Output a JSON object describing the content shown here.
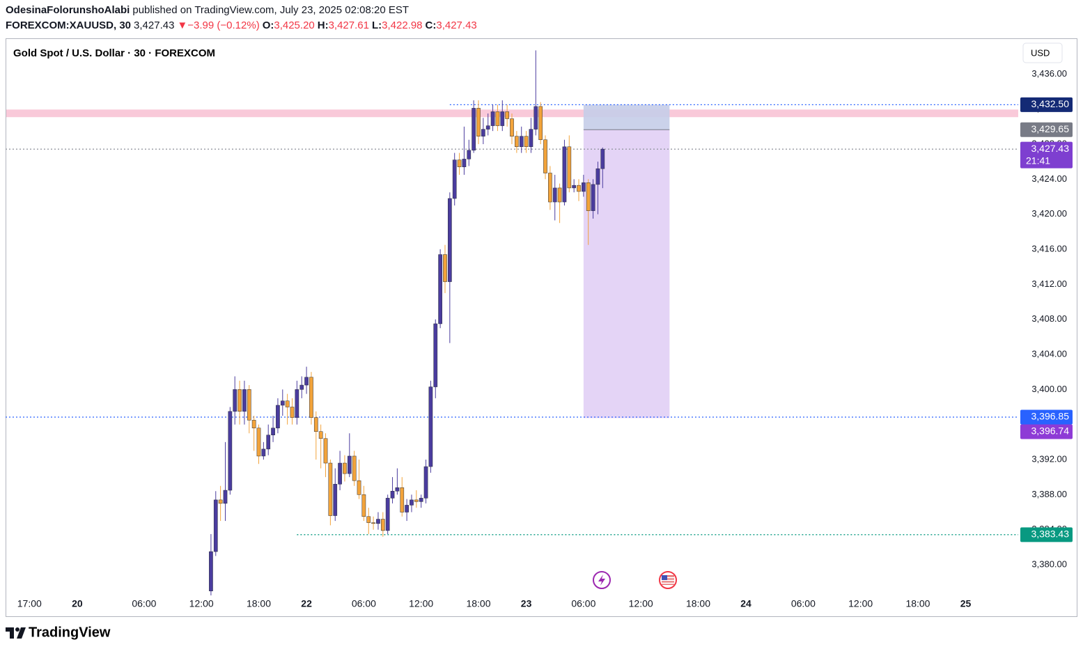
{
  "header": {
    "author": "OdesinaFolorunshoAlabi",
    "published": "published on TradingView.com, July 23, 2025 02:08:20 EST",
    "symbol": "FOREXCOM:XAUUSD, 30",
    "last": "3,427.43",
    "arrow": "▼",
    "change": "−3.99 (−0.12%)",
    "ohlc": [
      {
        "label": "O:",
        "value": "3,425.20"
      },
      {
        "label": "H:",
        "value": "3,427.61"
      },
      {
        "label": "L:",
        "value": "3,422.98"
      },
      {
        "label": "C:",
        "value": "3,427.43"
      }
    ]
  },
  "footer": {
    "brand": "TradingView"
  },
  "chart_data": {
    "type": "candlestick",
    "title": "Gold Spot / U.S. Dollar · 30 · FOREXCOM",
    "currency": "USD",
    "up_color": "#4a3c9e",
    "down_color": "#f2a33a",
    "xlim": [
      -41,
      171
    ],
    "ylim": [
      3376.9,
      3440
    ],
    "xticks": [
      {
        "value": -36,
        "label": "17:00"
      },
      {
        "value": -26,
        "label": "20"
      },
      {
        "value": -12,
        "label": "06:00"
      },
      {
        "value": 0,
        "label": "12:00"
      },
      {
        "value": 12,
        "label": "18:00"
      },
      {
        "value": 22,
        "label": "22"
      },
      {
        "value": 34,
        "label": "06:00"
      },
      {
        "value": 46,
        "label": "12:00"
      },
      {
        "value": 58,
        "label": "18:00"
      },
      {
        "value": 68,
        "label": "23"
      },
      {
        "value": 80,
        "label": "06:00"
      },
      {
        "value": 92,
        "label": "12:00"
      },
      {
        "value": 104,
        "label": "18:00"
      },
      {
        "value": 114,
        "label": "24"
      },
      {
        "value": 126,
        "label": "06:00"
      },
      {
        "value": 138,
        "label": "12:00"
      },
      {
        "value": 150,
        "label": "18:00"
      },
      {
        "value": 160,
        "label": "25"
      }
    ],
    "yticks": [
      {
        "value": 3380,
        "label": "3,380.00"
      },
      {
        "value": 3384,
        "label": "3,384.00"
      },
      {
        "value": 3388,
        "label": "3,388.00"
      },
      {
        "value": 3392,
        "label": "3,392.00"
      },
      {
        "value": 3396,
        "label": "3,396.00"
      },
      {
        "value": 3400,
        "label": "3,400.00"
      },
      {
        "value": 3404,
        "label": "3,404.00"
      },
      {
        "value": 3408,
        "label": "3,408.00"
      },
      {
        "value": 3412,
        "label": "3,412.00"
      },
      {
        "value": 3416,
        "label": "3,416.00"
      },
      {
        "value": 3420,
        "label": "3,420.00"
      },
      {
        "value": 3424,
        "label": "3,424.00"
      },
      {
        "value": 3428,
        "label": "3,428.00"
      },
      {
        "value": 3432,
        "label": "3,432.00"
      },
      {
        "value": 3436,
        "label": "3,436.00"
      }
    ],
    "x": [
      2,
      3,
      4,
      5,
      6,
      7,
      8,
      9,
      10,
      11,
      12,
      13,
      14,
      15,
      16,
      17,
      18,
      19,
      20,
      21,
      22,
      23,
      24,
      25,
      26,
      27,
      28,
      29,
      30,
      31,
      32,
      33,
      34,
      35,
      36,
      37,
      38,
      39,
      40,
      41,
      42,
      43,
      44,
      45,
      46,
      47,
      48,
      49,
      50,
      51,
      52,
      53,
      54,
      55,
      56,
      57,
      58,
      59,
      60,
      61,
      62,
      63,
      64,
      65,
      66,
      67,
      68,
      69,
      70,
      71,
      72,
      73,
      74,
      75,
      76,
      77,
      78,
      79,
      80,
      81,
      82,
      83,
      84
    ],
    "open": [
      3377.0,
      3381.5,
      3387.4,
      3387.0,
      3388.5,
      3397.5,
      3400.0,
      3397.5,
      3400.0,
      3396.5,
      3395.6,
      3392.4,
      3393.2,
      3394.8,
      3395.6,
      3398.2,
      3398.7,
      3398.0,
      3396.8,
      3400.0,
      3400.5,
      3401.4,
      3396.8,
      3395.2,
      3394.4,
      3391.6,
      3385.6,
      3389.2,
      3391.6,
      3390.4,
      3392.4,
      3389.6,
      3388.0,
      3385.5,
      3384.8,
      3384.7,
      3385.2,
      3383.9,
      3387.6,
      3388.4,
      3388.8,
      3386.0,
      3386.8,
      3387.4,
      3387.2,
      3387.6,
      3391.2,
      3400.3,
      3407.5,
      3415.4,
      3412.3,
      3421.8,
      3426.2,
      3425.4,
      3426.3,
      3427.3,
      3432.1,
      3428.9,
      3429.7,
      3430.1,
      3431.7,
      3430.1,
      3431.7,
      3430.9,
      3428.9,
      3427.7,
      3428.9,
      3427.7,
      3429.7,
      3432.3,
      3428.5,
      3424.7,
      3421.4,
      3423.0,
      3421.4,
      3427.7,
      3423.0,
      3423.3,
      3422.6,
      3423.6,
      3420.4,
      3423.4,
      3425.2
    ],
    "high": [
      3383.5,
      3388.4,
      3389.0,
      3394.0,
      3398.0,
      3401.5,
      3401.0,
      3401.0,
      3400.5,
      3397.0,
      3396.0,
      3394.0,
      3396.0,
      3397.0,
      3399.0,
      3400.0,
      3399.5,
      3399.0,
      3401.0,
      3401.5,
      3402.6,
      3402.0,
      3397.5,
      3396.0,
      3395.0,
      3392.0,
      3391.0,
      3393.0,
      3392.5,
      3395.0,
      3393.0,
      3392.0,
      3389.0,
      3386.5,
      3385.5,
      3386.0,
      3386.0,
      3388.0,
      3390.0,
      3391.0,
      3390.0,
      3387.5,
      3388.0,
      3388.5,
      3388.0,
      3392.0,
      3401.0,
      3408.0,
      3416.0,
      3416.5,
      3422.5,
      3427.0,
      3427.0,
      3430.0,
      3428.5,
      3433.0,
      3433.0,
      3431.0,
      3431.5,
      3432.5,
      3432.5,
      3433.0,
      3432.5,
      3431.5,
      3429.5,
      3430.0,
      3429.5,
      3431.0,
      3438.7,
      3432.8,
      3429.0,
      3425.5,
      3424.5,
      3423.5,
      3428.5,
      3429.0,
      3424.0,
      3424.0,
      3424.5,
      3424.0,
      3424.0,
      3426.0,
      3427.61
    ],
    "low": [
      3376.5,
      3381.0,
      3385.0,
      3385.0,
      3388.0,
      3396.0,
      3396.0,
      3396.0,
      3395.0,
      3393.0,
      3391.5,
      3392.0,
      3392.5,
      3394.0,
      3395.0,
      3397.0,
      3396.0,
      3396.0,
      3396.0,
      3399.0,
      3399.5,
      3396.0,
      3392.0,
      3391.0,
      3390.0,
      3384.5,
      3385.0,
      3388.5,
      3389.5,
      3390.0,
      3389.0,
      3387.5,
      3385.0,
      3383.5,
      3384.0,
      3384.0,
      3383.2,
      3383.5,
      3387.0,
      3388.0,
      3385.5,
      3385.0,
      3386.0,
      3386.5,
      3386.5,
      3387.0,
      3390.5,
      3399.0,
      3407.0,
      3411.0,
      3405.3,
      3421.0,
      3424.5,
      3424.5,
      3425.5,
      3427.0,
      3428.0,
      3428.0,
      3429.0,
      3429.5,
      3429.5,
      3429.5,
      3430.0,
      3428.0,
      3427.0,
      3427.0,
      3427.0,
      3427.0,
      3429.0,
      3428.0,
      3424.0,
      3420.5,
      3419.3,
      3419.0,
      3421.0,
      3422.5,
      3422.5,
      3421.5,
      3422.0,
      3416.5,
      3419.5,
      3420.0,
      3422.98
    ],
    "close": [
      3381.5,
      3387.4,
      3387.0,
      3388.5,
      3397.5,
      3400.0,
      3397.5,
      3400.0,
      3396.5,
      3395.6,
      3392.4,
      3393.2,
      3394.8,
      3395.6,
      3398.2,
      3398.7,
      3398.0,
      3396.8,
      3400.0,
      3400.5,
      3401.4,
      3396.8,
      3395.2,
      3394.4,
      3391.6,
      3385.6,
      3389.2,
      3391.6,
      3390.4,
      3392.4,
      3389.6,
      3388.0,
      3385.5,
      3384.8,
      3384.7,
      3385.2,
      3383.9,
      3387.6,
      3388.4,
      3388.8,
      3386.0,
      3386.8,
      3387.4,
      3387.2,
      3387.6,
      3391.2,
      3400.3,
      3407.5,
      3415.4,
      3412.3,
      3421.8,
      3426.2,
      3425.4,
      3426.3,
      3427.3,
      3432.1,
      3428.9,
      3429.7,
      3430.1,
      3431.7,
      3430.1,
      3431.7,
      3430.9,
      3428.9,
      3427.7,
      3428.9,
      3427.7,
      3429.7,
      3432.3,
      3428.5,
      3424.7,
      3421.4,
      3423.0,
      3421.4,
      3427.7,
      3423.0,
      3423.3,
      3422.6,
      3423.6,
      3420.4,
      3423.4,
      3425.2,
      3427.43
    ],
    "zone": {
      "from": 3431.08,
      "to": 3431.95,
      "color": "#f8bbd0"
    },
    "position": {
      "x": [
        80,
        98
      ],
      "stop": 3432.5,
      "entry": 3429.65,
      "target": 3396.74,
      "stop_color": "#c5cde8",
      "target_color": "#e4d4f6"
    },
    "price_lines": [
      {
        "value": 3432.5,
        "label": "3,432.50",
        "color": "#142a75",
        "line": "#2962ff",
        "x_start": 52
      },
      {
        "value": 3429.65,
        "label": "3,429.65",
        "color": "#787b86"
      },
      {
        "value": 3427.43,
        "label": "3,427.43",
        "sublabel": "21:41",
        "color": "#7e3fd0",
        "line": "#9598a1",
        "x_start": -41
      },
      {
        "value": 3396.85,
        "label": "3,396.85",
        "color": "#2962ff",
        "line": "#2962ff",
        "x_start": -41
      },
      {
        "value": 3396.74,
        "label": "3,396.74",
        "color": "#8e3bd6"
      },
      {
        "value": 3383.43,
        "label": "3,383.43",
        "color": "#089981",
        "line": "#089981",
        "x_start": 20
      }
    ]
  }
}
